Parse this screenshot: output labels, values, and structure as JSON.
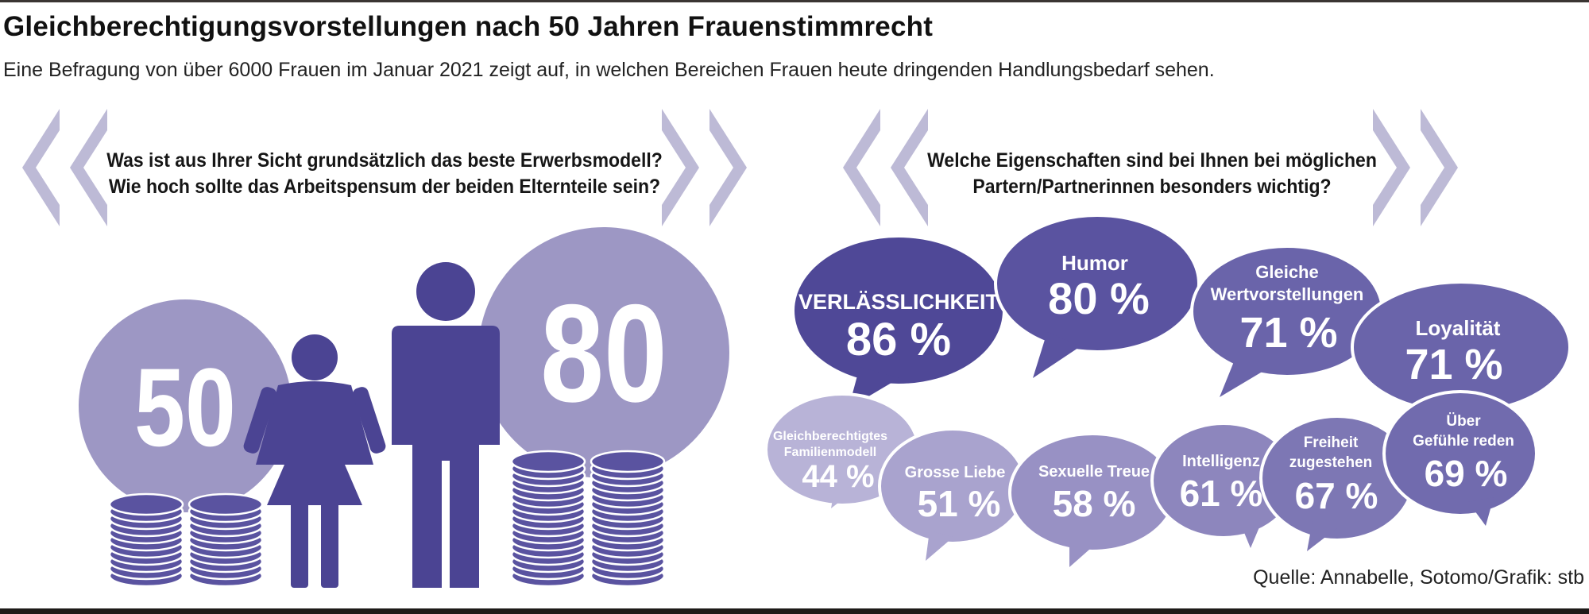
{
  "header": {
    "title": "Gleichberechtigungsvorstellungen nach 50 Jahren Frauenstimmrecht",
    "subtitle": "Eine Befragung von über 6000 Frauen im Januar 2021 zeigt auf, in  welchen Bereichen Frauen heute dringenden Handlungsbedarf sehen."
  },
  "left_panel": {
    "question_line1": "Was ist aus Ihrer Sicht grundsätzlich das beste Erwerbsmodell?",
    "question_line2": "Wie hoch sollte das Arbeitspensum der beiden Elternteile sein?",
    "woman_value": "50",
    "man_value": "80",
    "woman_coins": 2,
    "man_coins": 2,
    "colors": {
      "circle": "#9d97c4",
      "figure": "#4b4493",
      "coin": "#5a53a0"
    }
  },
  "right_panel": {
    "question_line1": "Welche Eigenschaften sind bei Ihnen bei möglichen",
    "question_line2": "Partern/Partnerinnen besonders wichtig?",
    "bubbles": [
      {
        "label": "VERLÄSSLICHKEIT",
        "value": "86 %",
        "color": "#4f4897"
      },
      {
        "label": "Humor",
        "value": "80 %",
        "color": "#5a53a0"
      },
      {
        "label_line1": "Gleiche",
        "label_line2": "Wertvorstellungen",
        "value": "71 %",
        "color": "#6a64aa"
      },
      {
        "label": "Loyalität",
        "value": "71 %",
        "color": "#6a64aa"
      },
      {
        "label_line1": "Gleichberechtigtes",
        "label_line2": "Familienmodell",
        "value": "44 %",
        "color": "#b8b3d7"
      },
      {
        "label": "Grosse Liebe",
        "value": "51 %",
        "color": "#a9a3ce"
      },
      {
        "label": "Sexuelle Treue",
        "value": "58 %",
        "color": "#9891c4"
      },
      {
        "label": "Intelligenz",
        "value": "61 %",
        "color": "#8d86bd"
      },
      {
        "label_line1": "Freiheit",
        "label_line2": "zugestehen",
        "value": "67 %",
        "color": "#7d77b4"
      },
      {
        "label_line1": "Über",
        "label_line2": "Gefühle reden",
        "value": "69 %",
        "color": "#716bae"
      }
    ]
  },
  "chevron_color": "#bdbad6",
  "source": "Quelle: Annabelle, Sotomo/Grafik: stb"
}
